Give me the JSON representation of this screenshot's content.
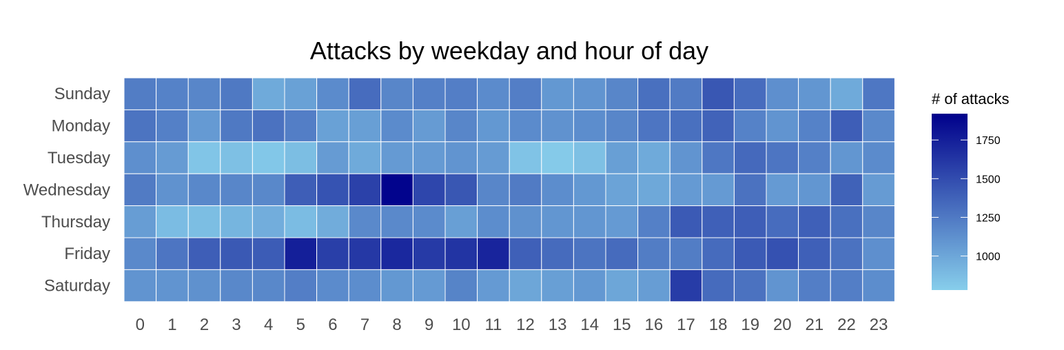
{
  "chart_data": {
    "type": "heatmap",
    "title": "Attacks by weekday and hour of day",
    "xlabel": "",
    "ylabel": "",
    "x": [
      "0",
      "1",
      "2",
      "3",
      "4",
      "5",
      "6",
      "7",
      "8",
      "9",
      "10",
      "11",
      "12",
      "13",
      "14",
      "15",
      "16",
      "17",
      "18",
      "19",
      "20",
      "21",
      "22",
      "23"
    ],
    "y": [
      "Sunday",
      "Monday",
      "Tuesday",
      "Wednesday",
      "Thursday",
      "Friday",
      "Saturday"
    ],
    "values": [
      [
        1230,
        1200,
        1180,
        1250,
        980,
        1030,
        1150,
        1320,
        1180,
        1210,
        1220,
        1150,
        1220,
        1080,
        1100,
        1180,
        1300,
        1240,
        1440,
        1320,
        1130,
        1090,
        980,
        1260
      ],
      [
        1280,
        1210,
        1070,
        1250,
        1290,
        1220,
        1030,
        1040,
        1150,
        1060,
        1180,
        1080,
        1150,
        1110,
        1140,
        1180,
        1270,
        1300,
        1370,
        1200,
        1100,
        1200,
        1400,
        1160
      ],
      [
        1130,
        1060,
        830,
        860,
        820,
        870,
        1060,
        980,
        1070,
        1070,
        1100,
        1060,
        840,
        800,
        860,
        1040,
        980,
        1100,
        1260,
        1340,
        1270,
        1210,
        1090,
        1150
      ],
      [
        1240,
        1110,
        1170,
        1180,
        1170,
        1400,
        1460,
        1560,
        1900,
        1530,
        1440,
        1180,
        1240,
        1140,
        1080,
        1020,
        990,
        1070,
        1070,
        1290,
        1070,
        1090,
        1380,
        1060
      ],
      [
        1050,
        880,
        870,
        920,
        960,
        880,
        970,
        1160,
        1160,
        1150,
        1040,
        1140,
        1120,
        1090,
        1090,
        1070,
        1210,
        1420,
        1390,
        1400,
        1320,
        1390,
        1300,
        1180
      ],
      [
        1160,
        1270,
        1400,
        1430,
        1410,
        1750,
        1570,
        1610,
        1700,
        1600,
        1630,
        1720,
        1390,
        1330,
        1280,
        1330,
        1230,
        1230,
        1330,
        1420,
        1470,
        1390,
        1290,
        1130
      ],
      [
        1100,
        1100,
        1120,
        1170,
        1170,
        1220,
        1150,
        1140,
        1080,
        1070,
        1190,
        1070,
        1000,
        1040,
        1080,
        1000,
        1050,
        1590,
        1330,
        1290,
        1100,
        1220,
        1220,
        1140
      ]
    ],
    "color_scale": {
      "low": "#87ceeb",
      "high": "#00008b",
      "min": 780,
      "max": 1920
    },
    "legend": {
      "title": "# of attacks",
      "ticks": [
        1000,
        1250,
        1500,
        1750
      ],
      "position": "right"
    },
    "grid": false
  }
}
